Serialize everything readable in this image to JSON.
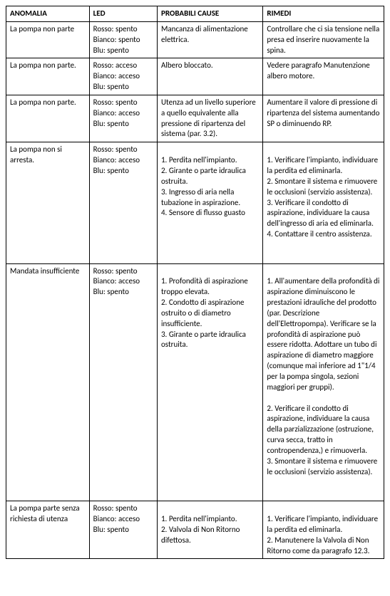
{
  "table": {
    "headers": {
      "anomalia": "ANOMALIA",
      "led": "LED",
      "cause": "PROBABILI CAUSE",
      "rimedi": "RIMEDI"
    },
    "rows": [
      {
        "anomalia": "La pompa non parte",
        "led": {
          "rosso": "Rosso: spento",
          "bianco": "Bianco: spento",
          "blu": "Blu: spento"
        },
        "cause": "Mancanza di alimentazione elettrica.",
        "rimedi": "Controllare che ci sia tensione nella presa ed inserire nuovamente la spina."
      },
      {
        "anomalia": "La pompa non parte.",
        "led": {
          "rosso": "Rosso: acceso",
          "bianco": "Bianco: acceso",
          "blu": "Blu: spento"
        },
        "cause": "Albero bloccato.",
        "rimedi": "Vedere paragrafo Manutenzione albero motore."
      },
      {
        "anomalia": "La pompa non parte.",
        "led": {
          "rosso": "Rosso: spento",
          "bianco": "Bianco: acceso",
          "blu": "Blu: spento"
        },
        "cause": "Utenza ad un livello superiore a quello equivalente alla pressione di ripartenza del sistema (par. 3.2).",
        "rimedi": "Aumentare il valore di pressione di ripartenza del sistema aumentando SP o diminuendo RP."
      },
      {
        "anomalia": "La pompa non si arresta.",
        "led": {
          "rosso": "Rosso: spento",
          "bianco": "Bianco: acceso",
          "blu": "Blu: spento"
        },
        "cause": "\n1. Perdita nell'impianto.\n2. Girante o parte idraulica ostruita.\n3. Ingresso di aria nella tubazione in aspirazione.\n4. Sensore di flusso guasto",
        "rimedi": "\n1. Verificare l'impianto, individuare la perdita ed eliminarla.\n2. Smontare il sistema e rimuovere le occlusioni (servizio assistenza).\n3. Verificare il condotto di aspirazione, individuare la causa dell'ingresso di aria ed eliminarla.\n4. Contattare il centro assistenza.\n\n\n"
      },
      {
        "anomalia": "Mandata insufficiente",
        "led": {
          "rosso": "Rosso: spento",
          "bianco": "Bianco: acceso",
          "blu": "Blu: spento"
        },
        "cause": "\n1. Profondità di aspirazione troppo elevata.\n2. Condotto di aspirazione ostruito o di diametro insufficiente.\n3. Girante o parte idraulica ostruita.",
        "rimedi": "\n1. All'aumentare della profondità di aspirazione diminuiscono le prestazioni idrauliche del prodotto (par. Descrizione dell'Elettropompa). Verificare se la profondità di aspirazione può essere ridotta. Adottare un tubo di aspirazione di diametro maggiore (comunque mai inferiore ad 1\"1/4 per la pompa singola, sezioni maggiori per gruppi).\n\n2. Verificare il condotto di aspirazione, individuare la causa della parzializzazione (ostruzione, curva secca, tratto in contropendenza,) e rimuoverla.\n3. Smontare il sistema e rimuovere le occlusioni (servizio assistenza).\n\n\n"
      },
      {
        "anomalia": "La pompa parte senza richiesta di utenza",
        "led": {
          "rosso": "Rosso: spento",
          "bianco": "Bianco: acceso",
          "blu": "Blu: spento"
        },
        "cause": "\n1. Perdita nell'impianto.\n2. Valvola di Non Ritorno difettosa.",
        "rimedi": "\n1. Verificare l'impianto, individuare la perdita ed eliminarla.\n2. Manutenere la Valvola di Non Ritorno come da paragrafo 12.3."
      }
    ]
  },
  "style": {
    "font_family": "Calibri, Arial, sans-serif",
    "font_size_pt": 8.5,
    "border_color": "#000000",
    "background_color": "#ffffff",
    "text_color": "#000000",
    "column_widths_pct": [
      22,
      18,
      28,
      32
    ]
  }
}
